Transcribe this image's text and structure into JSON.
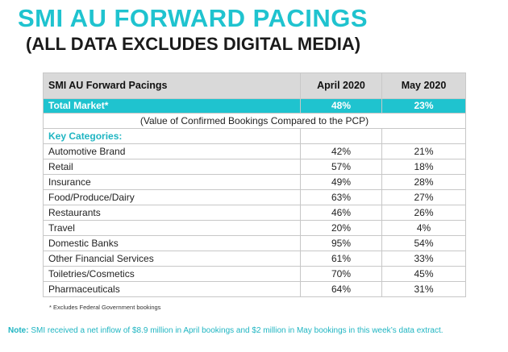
{
  "title": "SMI AU FORWARD PACINGS",
  "subtitle": "(ALL DATA EXCLUDES DIGITAL MEDIA)",
  "table": {
    "headers": [
      "SMI AU Forward Pacings",
      "April 2020",
      "May 2020"
    ],
    "total": {
      "label": "Total Market*",
      "april": "48%",
      "may": "23%"
    },
    "note": "(Value of Confirmed Bookings Compared to the PCP)",
    "categories_label": "Key Categories:",
    "rows": [
      {
        "name": "Automotive Brand",
        "april": "42%",
        "may": "21%"
      },
      {
        "name": "Retail",
        "april": "57%",
        "may": "18%"
      },
      {
        "name": "Insurance",
        "april": "49%",
        "may": "28%"
      },
      {
        "name": "Food/Produce/Dairy",
        "april": "63%",
        "may": "27%"
      },
      {
        "name": "Restaurants",
        "april": "46%",
        "may": "26%"
      },
      {
        "name": "Travel",
        "april": "20%",
        "may": "4%"
      },
      {
        "name": "Domestic Banks",
        "april": "95%",
        "may": "54%"
      },
      {
        "name": "Other Financial Services",
        "april": "61%",
        "may": "33%"
      },
      {
        "name": "Toiletries/Cosmetics",
        "april": "70%",
        "may": "45%"
      },
      {
        "name": "Pharmaceuticals",
        "april": "64%",
        "may": "31%"
      }
    ]
  },
  "footnote": "* Excludes Federal Government bookings",
  "bottom_note": {
    "label": "Note:",
    "text": " SMI received a net inflow of $8.9 million in April bookings and $2 million in May bookings in this week’s data extract."
  },
  "colors": {
    "accent": "#1fc3cf",
    "header_bg": "#d9d9d9"
  }
}
